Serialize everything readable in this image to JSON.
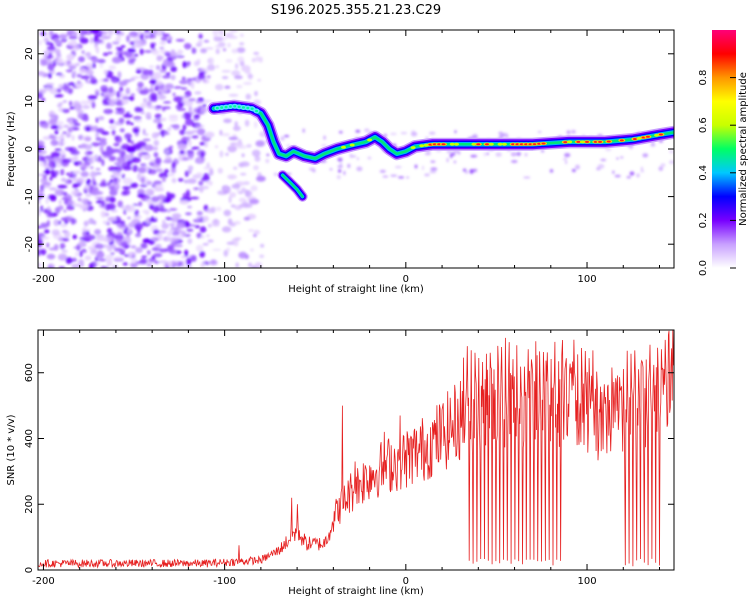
{
  "title": "S196.2025.355.21.23.C29",
  "chart_data": [
    {
      "type": "heatmap",
      "xlabel": "Height of straight line (km)",
      "ylabel": "Frequency (Hz)",
      "xlim": [
        -203,
        148
      ],
      "ylim": [
        -25,
        25
      ],
      "xticks": [
        -200,
        -100,
        0,
        100
      ],
      "yticks": [
        -20,
        -10,
        0,
        10,
        20
      ],
      "ridge": [
        {
          "x": -106,
          "y": 8.5
        },
        {
          "x": -95,
          "y": 9.0
        },
        {
          "x": -85,
          "y": 8.5
        },
        {
          "x": -80,
          "y": 7.5
        },
        {
          "x": -76,
          "y": 5.0
        },
        {
          "x": -73,
          "y": 1.5
        },
        {
          "x": -70,
          "y": -1.0
        },
        {
          "x": -66,
          "y": -1.5
        },
        {
          "x": -62,
          "y": -0.5
        },
        {
          "x": -56,
          "y": -1.5
        },
        {
          "x": -50,
          "y": -2.0
        },
        {
          "x": -45,
          "y": -1.0
        },
        {
          "x": -38,
          "y": 0.0
        },
        {
          "x": -30,
          "y": 0.8
        },
        {
          "x": -22,
          "y": 1.5
        },
        {
          "x": -17,
          "y": 2.5
        },
        {
          "x": -13,
          "y": 1.5
        },
        {
          "x": -9,
          "y": 0.0
        },
        {
          "x": -5,
          "y": -1.0
        },
        {
          "x": 0,
          "y": -0.5
        },
        {
          "x": 5,
          "y": 0.5
        },
        {
          "x": 15,
          "y": 1.0
        },
        {
          "x": 30,
          "y": 1.0
        },
        {
          "x": 50,
          "y": 1.0
        },
        {
          "x": 70,
          "y": 1.0
        },
        {
          "x": 90,
          "y": 1.5
        },
        {
          "x": 110,
          "y": 1.5
        },
        {
          "x": 125,
          "y": 2.0
        },
        {
          "x": 140,
          "y": 3.0
        },
        {
          "x": 148,
          "y": 3.5
        }
      ],
      "branch": [
        {
          "x": -68,
          "y": -5.5
        },
        {
          "x": -64,
          "y": -7.0
        },
        {
          "x": -60,
          "y": -8.5
        },
        {
          "x": -57,
          "y": -10.0
        }
      ],
      "colorbar": {
        "label": "Normalized spectral amplitude",
        "range": [
          0,
          1
        ],
        "ticks": [
          0.0,
          0.2,
          0.4,
          0.6,
          0.8
        ],
        "tick_labels": [
          "0.0",
          "0.2",
          "0.4",
          "0.6",
          "0.8"
        ],
        "colors": [
          "#ffffff",
          "#c8a0ff",
          "#7800ff",
          "#0000ff",
          "#00c8ff",
          "#00ff64",
          "#c8ff00",
          "#ffff00",
          "#ff9600",
          "#ff0000",
          "#ff0078"
        ]
      }
    },
    {
      "type": "line",
      "xlabel": "Height of straight line (km)",
      "ylabel": "SNR (10 * v/v)",
      "xlim": [
        -203,
        148
      ],
      "ylim": [
        0,
        730
      ],
      "xticks": [
        -200,
        -100,
        0,
        100
      ],
      "yticks": [
        0,
        200,
        400,
        600
      ],
      "color": "#e62020",
      "envelope": [
        {
          "x": -203,
          "y": 20
        },
        {
          "x": -110,
          "y": 20
        },
        {
          "x": -80,
          "y": 30
        },
        {
          "x": -70,
          "y": 60
        },
        {
          "x": -60,
          "y": 120
        },
        {
          "x": -55,
          "y": 80
        },
        {
          "x": -45,
          "y": 80
        },
        {
          "x": -38,
          "y": 180
        },
        {
          "x": -30,
          "y": 240
        },
        {
          "x": -20,
          "y": 290
        },
        {
          "x": -10,
          "y": 320
        },
        {
          "x": 0,
          "y": 340
        },
        {
          "x": 10,
          "y": 370
        },
        {
          "x": 20,
          "y": 410
        },
        {
          "x": 30,
          "y": 460
        },
        {
          "x": 40,
          "y": 500
        },
        {
          "x": 55,
          "y": 510
        },
        {
          "x": 70,
          "y": 520
        },
        {
          "x": 85,
          "y": 520
        },
        {
          "x": 95,
          "y": 500
        },
        {
          "x": 105,
          "y": 450
        },
        {
          "x": 115,
          "y": 460
        },
        {
          "x": 130,
          "y": 510
        },
        {
          "x": 148,
          "y": 530
        }
      ],
      "spike_peaks": [
        {
          "x": -92,
          "y": 75
        },
        {
          "x": -63,
          "y": 220
        },
        {
          "x": -60,
          "y": 200
        },
        {
          "x": -35,
          "y": 500
        },
        {
          "x": -28,
          "y": 330
        },
        {
          "x": -12,
          "y": 420
        },
        {
          "x": -3,
          "y": 470
        },
        {
          "x": 35,
          "y": 700
        },
        {
          "x": 77,
          "y": 730
        },
        {
          "x": 145,
          "y": 715
        }
      ],
      "dropout_ranges": [
        [
          34,
          86
        ],
        [
          120,
          140
        ]
      ]
    }
  ]
}
